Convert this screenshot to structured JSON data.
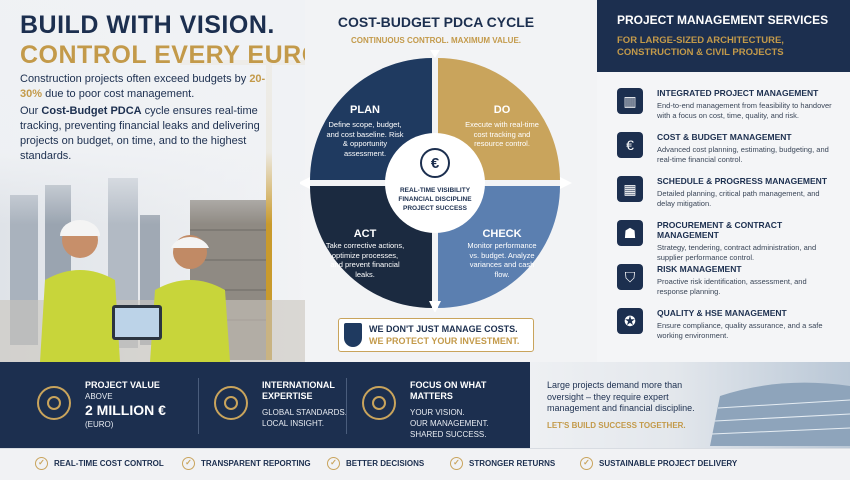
{
  "hero": {
    "title_line1": "BUILD WITH VISION.",
    "title_line2": "CONTROL EVERY EURO.",
    "intro1": [
      "Construction projects often exceed budgets by ",
      "20-30%",
      " due to poor cost management."
    ],
    "intro2": [
      "Our ",
      "Cost-Budget PDCA",
      " cycle ensures real-time tracking, preventing financial leaks and delivering projects on budget, on time, and to the highest standards."
    ]
  },
  "cycle": {
    "title": "COST-BUDGET PDCA CYCLE",
    "subtitle": "CONTINUOUS CONTROL. MAXIMUM VALUE.",
    "center": [
      "REAL-TIME VISIBILITY",
      "FINANCIAL DISCIPLINE",
      "PROJECT SUCCESS"
    ],
    "phases": [
      {
        "name": "PLAN",
        "text": "Define scope, budget, and cost baseline. Risk & opportunity assessment."
      },
      {
        "name": "DO",
        "text": "Execute with real-time cost tracking and resource control."
      },
      {
        "name": "CHECK",
        "text": "Monitor performance vs. budget. Analyze variances and cash flow."
      },
      {
        "name": "ACT",
        "text": "Take corrective actions, optimize processes, and prevent financial leaks."
      }
    ],
    "banner": [
      "WE DON'T JUST MANAGE COSTS.",
      "WE PROTECT YOUR INVESTMENT."
    ]
  },
  "services": {
    "title": "PROJECT MANAGEMENT SERVICES",
    "subtitle": "FOR LARGE-SIZED ARCHITECTURE, CONSTRUCTION & CIVIL PROJECTS",
    "items": [
      {
        "title": "INTEGRATED PROJECT MANAGEMENT",
        "text": "End-to-end management from feasibility to handover with a focus on cost, time, quality, and risk."
      },
      {
        "title": "COST & BUDGET MANAGEMENT",
        "text": "Advanced cost planning, estimating, budgeting, and real-time financial control."
      },
      {
        "title": "SCHEDULE & PROGRESS MANAGEMENT",
        "text": "Detailed planning, critical path management, and delay mitigation."
      },
      {
        "title": "PROCUREMENT & CONTRACT MANAGEMENT",
        "text": "Strategy, tendering, contract administration, and supplier performance control."
      },
      {
        "title": "RISK MANAGEMENT",
        "text": "Proactive risk identification, assessment, and response planning."
      },
      {
        "title": "QUALITY & HSE MANAGEMENT",
        "text": "Ensure compliance, quality assurance, and a safe working environment."
      }
    ]
  },
  "stats": [
    {
      "title": "PROJECT VALUE",
      "lines": [
        "ABOVE",
        "2 MILLION €",
        "(EURO)"
      ]
    },
    {
      "title": "INTERNATIONAL EXPERTISE",
      "lines": [
        "GLOBAL STANDARDS.",
        "LOCAL INSIGHT."
      ]
    },
    {
      "title": "FOCUS ON WHAT MATTERS",
      "lines": [
        "YOUR VISION.",
        "OUR MANAGEMENT.",
        "SHARED SUCCESS."
      ]
    }
  ],
  "closing": {
    "text": "Large projects demand more than oversight – they require expert management and financial discipline.",
    "cta": "LET'S BUILD SUCCESS TOGETHER."
  },
  "footer": [
    "REAL-TIME COST CONTROL",
    "TRANSPARENT REPORTING",
    "BETTER DECISIONS",
    "STRONGER RETURNS",
    "SUSTAINABLE PROJECT DELIVERY"
  ]
}
